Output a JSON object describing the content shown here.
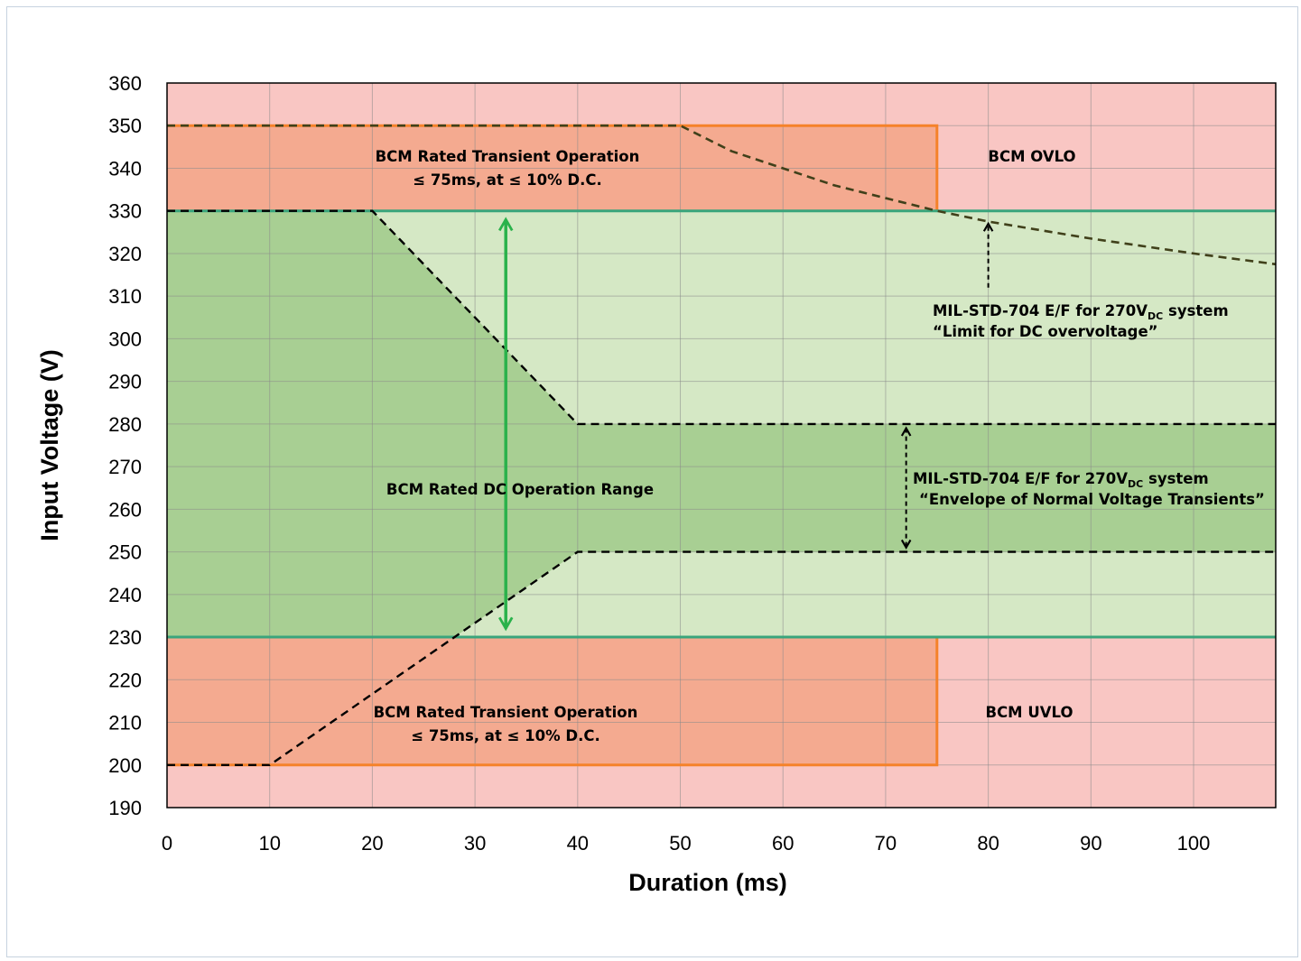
{
  "chart_data": {
    "type": "area",
    "title": "",
    "xlabel": "Duration (ms)",
    "ylabel": "Input Voltage (V)",
    "xlim": [
      0,
      108
    ],
    "ylim": [
      190,
      360
    ],
    "xticks": [
      0,
      10,
      20,
      30,
      40,
      50,
      60,
      70,
      80,
      90,
      100
    ],
    "yticks": [
      190,
      200,
      210,
      220,
      230,
      240,
      250,
      260,
      270,
      280,
      290,
      300,
      310,
      320,
      330,
      340,
      350,
      360
    ],
    "grid": true,
    "colors": {
      "background_region": "#f9c6c3",
      "transient_region": "#f4aa90",
      "transient_border": "#f5822a",
      "rated_dc_region": "#d5e8c5",
      "envelope_region": "#a8cf93",
      "boundary_line": "#3aa57c",
      "rated_arrow": "#2ab24b",
      "dashed_line": "#000000",
      "overvoltage_curve": "#40401a"
    },
    "regions": [
      {
        "name": "BCM Rated DC Operation Range",
        "x": [
          0,
          108
        ],
        "y": [
          230,
          330
        ]
      },
      {
        "name": "BCM Rated Transient Operation (upper)",
        "x": [
          0,
          75
        ],
        "y": [
          330,
          350
        ]
      },
      {
        "name": "BCM Rated Transient Operation (lower)",
        "x": [
          0,
          75
        ],
        "y": [
          200,
          230
        ]
      }
    ],
    "series": [
      {
        "name": "Limit for DC overvoltage",
        "style": "dashed",
        "x": [
          0,
          50,
          55,
          65,
          75,
          80,
          90,
          100,
          108
        ],
        "y": [
          350,
          350,
          344,
          336,
          330,
          327.5,
          323.5,
          320,
          317.5
        ]
      },
      {
        "name": "Envelope of Normal Voltage Transients (upper)",
        "style": "dashed",
        "x": [
          0,
          20,
          40,
          108
        ],
        "y": [
          330,
          330,
          280,
          280
        ]
      },
      {
        "name": "Envelope of Normal Voltage Transients (lower)",
        "style": "dashed",
        "x": [
          0,
          10,
          40,
          108
        ],
        "y": [
          200,
          200,
          250,
          250
        ]
      }
    ],
    "annotations": {
      "upper_transient": [
        "BCM Rated Transient Operation",
        "≤ 75ms, at ≤ 10% D.C."
      ],
      "lower_transient": [
        "BCM Rated Transient Operation",
        "≤ 75ms, at ≤ 10% D.C."
      ],
      "ovlo": "BCM OVLO",
      "uvlo": "BCM UVLO",
      "dc_range": "BCM Rated DC Operation Range",
      "overvoltage_limit": {
        "line1_prefix": "MIL-STD-704 E/F for 270V",
        "line1_sub": "DC",
        "line1_suffix": " system",
        "line2": "“Limit for DC overvoltage”"
      },
      "normal_transients": {
        "line1_prefix": "MIL-STD-704 E/F for 270V",
        "line1_sub": "DC",
        "line1_suffix": " system",
        "line2": "“Envelope of Normal Voltage Transients”"
      }
    }
  }
}
